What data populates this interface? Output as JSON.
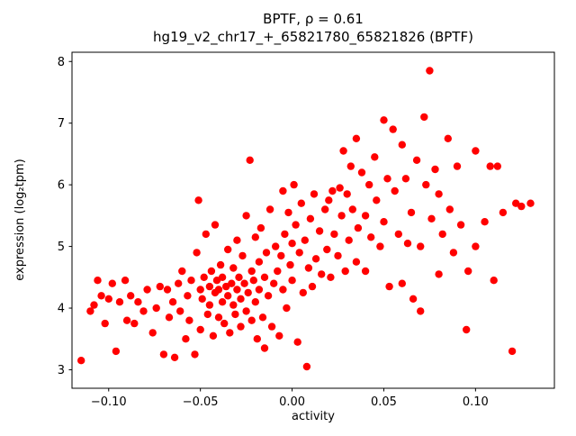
{
  "chart_data": {
    "type": "scatter",
    "title": "BPTF, ρ = 0.61",
    "subtitle": "hg19_v2_chr17_+_65821780_65821826 (BPTF)",
    "xlabel": "activity",
    "ylabel": "expression (log₂tpm)",
    "marker_color": "#ff0000",
    "grid": false,
    "legend": "none",
    "xlim": [
      -0.12,
      0.143
    ],
    "ylim": [
      2.7,
      8.15
    ],
    "xticks": [
      {
        "value": -0.1,
        "label": "−0.10"
      },
      {
        "value": -0.05,
        "label": "−0.05"
      },
      {
        "value": 0.0,
        "label": "0.00"
      },
      {
        "value": 0.05,
        "label": "0.05"
      },
      {
        "value": 0.1,
        "label": "0.10"
      }
    ],
    "yticks": [
      {
        "value": 3,
        "label": "3"
      },
      {
        "value": 4,
        "label": "4"
      },
      {
        "value": 5,
        "label": "5"
      },
      {
        "value": 6,
        "label": "6"
      },
      {
        "value": 7,
        "label": "7"
      },
      {
        "value": 8,
        "label": "8"
      }
    ],
    "points": [
      [
        -0.115,
        3.15
      ],
      [
        -0.11,
        3.95
      ],
      [
        -0.108,
        4.05
      ],
      [
        -0.106,
        4.45
      ],
      [
        -0.104,
        4.2
      ],
      [
        -0.102,
        3.75
      ],
      [
        -0.1,
        4.15
      ],
      [
        -0.098,
        4.4
      ],
      [
        -0.096,
        3.3
      ],
      [
        -0.094,
        4.1
      ],
      [
        -0.091,
        4.45
      ],
      [
        -0.09,
        3.8
      ],
      [
        -0.088,
        4.2
      ],
      [
        -0.086,
        3.75
      ],
      [
        -0.084,
        4.1
      ],
      [
        -0.081,
        3.95
      ],
      [
        -0.079,
        4.3
      ],
      [
        -0.076,
        3.6
      ],
      [
        -0.074,
        4.0
      ],
      [
        -0.072,
        4.35
      ],
      [
        -0.07,
        3.25
      ],
      [
        -0.068,
        4.3
      ],
      [
        -0.067,
        3.85
      ],
      [
        -0.065,
        4.1
      ],
      [
        -0.064,
        3.2
      ],
      [
        -0.062,
        4.4
      ],
      [
        -0.061,
        3.95
      ],
      [
        -0.06,
        4.6
      ],
      [
        -0.058,
        3.5
      ],
      [
        -0.057,
        4.2
      ],
      [
        -0.056,
        3.8
      ],
      [
        -0.055,
        4.45
      ],
      [
        -0.053,
        3.25
      ],
      [
        -0.052,
        4.9
      ],
      [
        -0.051,
        5.75
      ],
      [
        -0.05,
        4.3
      ],
      [
        -0.05,
        3.65
      ],
      [
        -0.049,
        4.15
      ],
      [
        -0.048,
        4.5
      ],
      [
        -0.047,
        5.2
      ],
      [
        -0.046,
        3.9
      ],
      [
        -0.045,
        4.35
      ],
      [
        -0.045,
        4.05
      ],
      [
        -0.044,
        4.6
      ],
      [
        -0.043,
        3.55
      ],
      [
        -0.042,
        4.25
      ],
      [
        -0.042,
        5.35
      ],
      [
        -0.041,
        4.45
      ],
      [
        -0.04,
        3.85
      ],
      [
        -0.04,
        4.3
      ],
      [
        -0.039,
        4.7
      ],
      [
        -0.038,
        4.1
      ],
      [
        -0.038,
        4.5
      ],
      [
        -0.037,
        3.75
      ],
      [
        -0.036,
        4.35
      ],
      [
        -0.035,
        4.95
      ],
      [
        -0.035,
        4.2
      ],
      [
        -0.034,
        3.6
      ],
      [
        -0.033,
        4.4
      ],
      [
        -0.032,
        4.05
      ],
      [
        -0.032,
        4.65
      ],
      [
        -0.031,
        3.9
      ],
      [
        -0.03,
        4.3
      ],
      [
        -0.03,
        5.1
      ],
      [
        -0.029,
        4.5
      ],
      [
        -0.028,
        3.7
      ],
      [
        -0.028,
        4.15
      ],
      [
        -0.027,
        4.85
      ],
      [
        -0.026,
        4.4
      ],
      [
        -0.025,
        3.95
      ],
      [
        -0.025,
        5.5
      ],
      [
        -0.024,
        4.25
      ],
      [
        -0.023,
        6.4
      ],
      [
        -0.022,
        4.6
      ],
      [
        -0.022,
        3.8
      ],
      [
        -0.021,
        4.45
      ],
      [
        -0.02,
        5.15
      ],
      [
        -0.02,
        4.1
      ],
      [
        -0.019,
        3.5
      ],
      [
        -0.018,
        4.75
      ],
      [
        -0.018,
        4.3
      ],
      [
        -0.017,
        5.3
      ],
      [
        -0.016,
        3.85
      ],
      [
        -0.015,
        4.5
      ],
      [
        -0.015,
        3.35
      ],
      [
        -0.014,
        4.9
      ],
      [
        -0.013,
        4.2
      ],
      [
        -0.012,
        5.6
      ],
      [
        -0.011,
        3.7
      ],
      [
        -0.01,
        4.4
      ],
      [
        -0.009,
        5.0
      ],
      [
        -0.008,
        4.6
      ],
      [
        -0.007,
        3.55
      ],
      [
        -0.006,
        4.85
      ],
      [
        -0.005,
        5.9
      ],
      [
        -0.005,
        4.3
      ],
      [
        -0.004,
        5.2
      ],
      [
        -0.003,
        4.0
      ],
      [
        -0.002,
        5.55
      ],
      [
        -0.001,
        4.7
      ],
      [
        0.0,
        5.05
      ],
      [
        0.0,
        4.45
      ],
      [
        0.001,
        6.0
      ],
      [
        0.002,
        5.35
      ],
      [
        0.003,
        3.45
      ],
      [
        0.004,
        4.9
      ],
      [
        0.005,
        5.7
      ],
      [
        0.006,
        4.25
      ],
      [
        0.007,
        5.1
      ],
      [
        0.008,
        3.05
      ],
      [
        0.009,
        4.65
      ],
      [
        0.01,
        5.45
      ],
      [
        0.011,
        4.35
      ],
      [
        0.012,
        5.85
      ],
      [
        0.013,
        4.8
      ],
      [
        0.015,
        5.25
      ],
      [
        0.016,
        4.55
      ],
      [
        0.018,
        5.6
      ],
      [
        0.019,
        4.95
      ],
      [
        0.02,
        5.75
      ],
      [
        0.021,
        4.5
      ],
      [
        0.022,
        5.9
      ],
      [
        0.023,
        5.2
      ],
      [
        0.025,
        4.85
      ],
      [
        0.026,
        5.95
      ],
      [
        0.027,
        5.5
      ],
      [
        0.028,
        6.55
      ],
      [
        0.029,
        4.6
      ],
      [
        0.03,
        5.85
      ],
      [
        0.031,
        5.1
      ],
      [
        0.032,
        6.3
      ],
      [
        0.033,
        5.6
      ],
      [
        0.035,
        6.75
      ],
      [
        0.035,
        4.75
      ],
      [
        0.036,
        5.3
      ],
      [
        0.038,
        6.2
      ],
      [
        0.04,
        5.5
      ],
      [
        0.04,
        4.6
      ],
      [
        0.042,
        6.0
      ],
      [
        0.043,
        5.15
      ],
      [
        0.045,
        6.45
      ],
      [
        0.046,
        5.75
      ],
      [
        0.048,
        5.0
      ],
      [
        0.05,
        7.05
      ],
      [
        0.05,
        5.4
      ],
      [
        0.052,
        6.1
      ],
      [
        0.053,
        4.35
      ],
      [
        0.055,
        6.9
      ],
      [
        0.056,
        5.9
      ],
      [
        0.058,
        5.2
      ],
      [
        0.06,
        6.65
      ],
      [
        0.06,
        4.4
      ],
      [
        0.062,
        6.1
      ],
      [
        0.063,
        5.05
      ],
      [
        0.065,
        5.55
      ],
      [
        0.066,
        4.15
      ],
      [
        0.068,
        6.4
      ],
      [
        0.07,
        5.0
      ],
      [
        0.07,
        3.95
      ],
      [
        0.072,
        7.1
      ],
      [
        0.073,
        6.0
      ],
      [
        0.075,
        7.85
      ],
      [
        0.076,
        5.45
      ],
      [
        0.078,
        6.25
      ],
      [
        0.08,
        5.85
      ],
      [
        0.08,
        4.55
      ],
      [
        0.082,
        5.2
      ],
      [
        0.085,
        6.75
      ],
      [
        0.086,
        5.6
      ],
      [
        0.088,
        4.9
      ],
      [
        0.09,
        6.3
      ],
      [
        0.092,
        5.35
      ],
      [
        0.095,
        3.65
      ],
      [
        0.096,
        4.6
      ],
      [
        0.1,
        6.55
      ],
      [
        0.1,
        5.0
      ],
      [
        0.105,
        5.4
      ],
      [
        0.108,
        6.3
      ],
      [
        0.11,
        4.45
      ],
      [
        0.112,
        6.3
      ],
      [
        0.115,
        5.55
      ],
      [
        0.12,
        3.3
      ],
      [
        0.122,
        5.7
      ],
      [
        0.125,
        5.65
      ],
      [
        0.13,
        5.7
      ]
    ]
  }
}
